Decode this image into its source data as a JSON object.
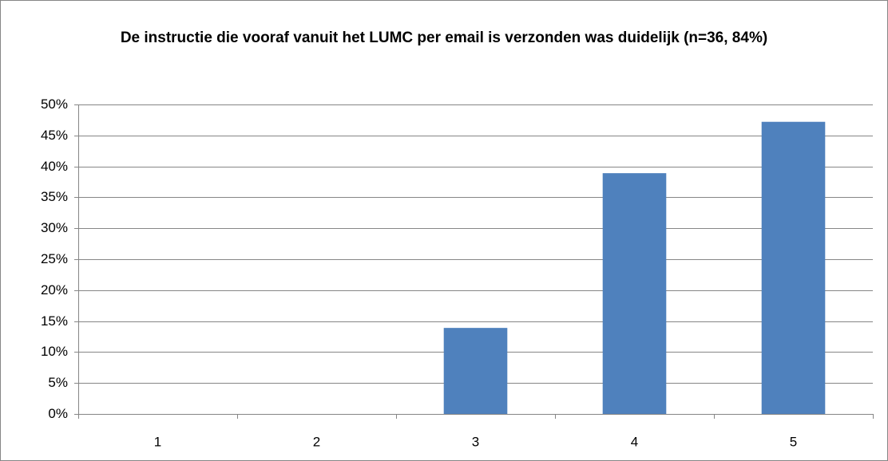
{
  "chart_data": {
    "type": "bar",
    "title": "De instructie die vooraf vanuit het LUMC per email is verzonden was duidelijk (n=36, 84%)",
    "categories": [
      "1",
      "2",
      "3",
      "4",
      "5"
    ],
    "values": [
      0,
      0,
      13.9,
      38.9,
      47.2
    ],
    "color": "#4f81bd",
    "ylim": [
      0,
      50
    ],
    "yticks": [
      {
        "value": 0,
        "label": "0%"
      },
      {
        "value": 5,
        "label": "5%"
      },
      {
        "value": 10,
        "label": "10%"
      },
      {
        "value": 15,
        "label": "15%"
      },
      {
        "value": 20,
        "label": "20%"
      },
      {
        "value": 25,
        "label": "25%"
      },
      {
        "value": 30,
        "label": "30%"
      },
      {
        "value": 35,
        "label": "35%"
      },
      {
        "value": 40,
        "label": "40%"
      },
      {
        "value": 45,
        "label": "45%"
      },
      {
        "value": 50,
        "label": "50%"
      }
    ],
    "grid": true
  }
}
